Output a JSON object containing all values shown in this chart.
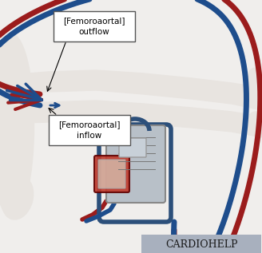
{
  "bg_color": "#f0eeec",
  "body_color": "#e8e4e0",
  "body_outline": "#d0ccc8",
  "tube_red": "#9b1c1c",
  "tube_blue": "#1e4d8c",
  "tube_red2": "#c0392b",
  "tube_blue2": "#2471a3",
  "device_frame": "#2c4f7a",
  "device_body": "#9aa8b8",
  "device_red": "#c0392b",
  "device_silver": "#b8c0c8",
  "label_bg": "#ffffff",
  "label_edge": "#555555",
  "cardiohelp_bg": "#a8b0be",
  "cardiohelp_text": "#1a1a1a",
  "outflow_label": "[Femoroaortal]\noutflow",
  "inflow_label": "[Femoroaortal]\ninflow",
  "cardiohelp_label": "CARDIOHELP"
}
